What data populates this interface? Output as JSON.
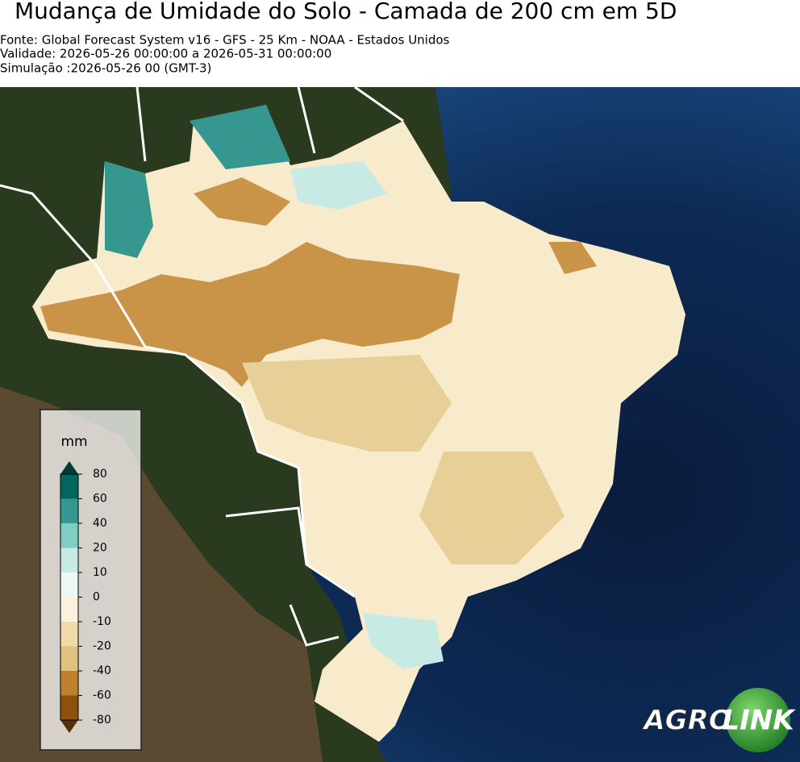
{
  "header": {
    "title": "Mudança de Umidade do Solo - Camada de 200 cm em 5D",
    "lines": [
      "Fonte: Global Forecast System v16 - GFS - 25 Km - NOAA - Estados Unidos",
      "Validade: 2026-05-26 00:00:00 a 2026-05-31 00:00:00",
      "Simulação :2026-05-26 00 (GMT-3)"
    ]
  },
  "colorbar": {
    "unit": "mm",
    "ticks": [
      80,
      60,
      40,
      20,
      10,
      0,
      -10,
      -20,
      -40,
      -60,
      -80
    ],
    "colors": [
      "#003c30",
      "#01665e",
      "#35978f",
      "#80cdc1",
      "#c7eae5",
      "#eef7f5",
      "#fbf1dc",
      "#f0dba8",
      "#dfc27d",
      "#bf812d",
      "#8c510a",
      "#543005"
    ]
  },
  "logo": {
    "text1": "AGRO",
    "text2": "LINK"
  }
}
